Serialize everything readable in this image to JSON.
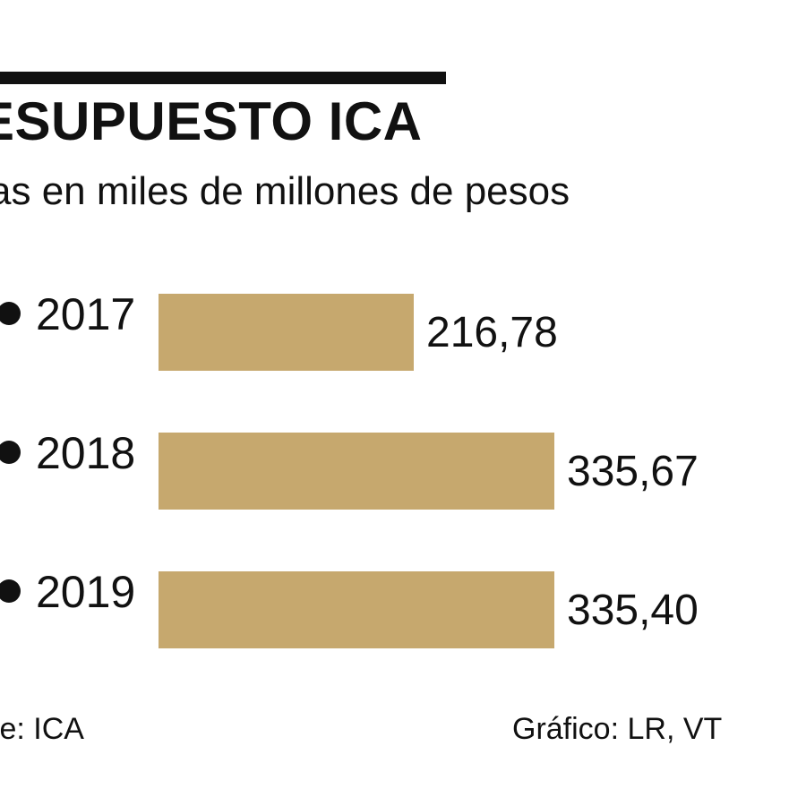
{
  "header": {
    "title": "ESUPUESTO ICA",
    "subtitle": "as en miles de millones de pesos"
  },
  "footer": {
    "source": "te: ICA",
    "credit": "Gráfico: LR, VT"
  },
  "colors": {
    "bar": "#c6a86e",
    "text": "#111111",
    "rule": "#111111"
  },
  "chart_data": {
    "type": "bar",
    "orientation": "horizontal",
    "categories": [
      "2017",
      "2018",
      "2019"
    ],
    "values": [
      216.78,
      335.67,
      335.4
    ],
    "value_labels": [
      "216,78",
      "335,67",
      "335,40"
    ],
    "title": "ESUPUESTO ICA",
    "subtitle": "as en miles de millones de pesos",
    "xlim": [
      0,
      335.67
    ],
    "grid": false,
    "legend": "none"
  }
}
